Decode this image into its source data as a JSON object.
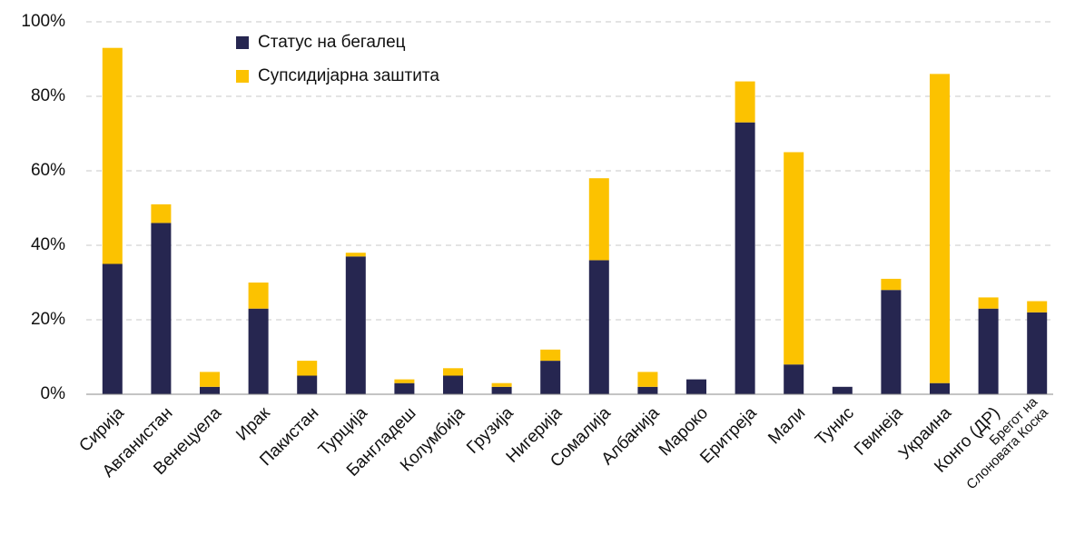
{
  "chart_data": {
    "type": "stacked_bar",
    "categories": [
      "Сирија",
      "Авганистан",
      "Венецуела",
      "Ирак",
      "Пакистан",
      "Турција",
      "Бангладеш",
      "Колумбија",
      "Грузија",
      "Нигерија",
      "Сомалија",
      "Албанија",
      "Мароко",
      "Еритреја",
      "Мали",
      "Тунис",
      "Гвинеја",
      "Украина",
      "Конго (ДР)",
      "Брегот на\nСлоновата Коска"
    ],
    "series": [
      {
        "name": "Статус на бегалец",
        "color": "#262650",
        "values": [
          35,
          46,
          2,
          23,
          5,
          37,
          3,
          5,
          2,
          9,
          36,
          2,
          4,
          73,
          8,
          2,
          28,
          3,
          23,
          22
        ]
      },
      {
        "name": "Супсидијарна заштита",
        "color": "#fcc200",
        "values": [
          58,
          5,
          4,
          7,
          4,
          1,
          1,
          2,
          1,
          3,
          22,
          4,
          0,
          11,
          57,
          0,
          3,
          83,
          3,
          3
        ]
      }
    ],
    "ylim": [
      0,
      100
    ],
    "yticks": [
      {
        "value": 0,
        "label": "0%"
      },
      {
        "value": 20,
        "label": "20%"
      },
      {
        "value": 40,
        "label": "40%"
      },
      {
        "value": 60,
        "label": "60%"
      },
      {
        "value": 80,
        "label": "80%"
      },
      {
        "value": 100,
        "label": "100%"
      }
    ],
    "grid": true,
    "legend": "top-left"
  }
}
